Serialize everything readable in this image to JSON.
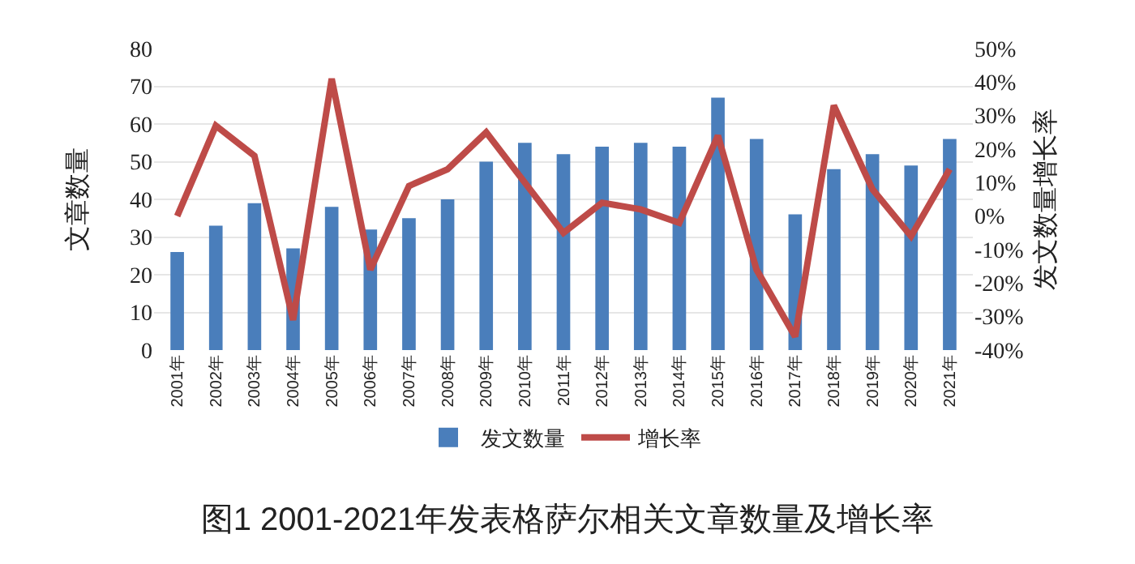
{
  "chart_data": {
    "type": "bar",
    "title": "图1 2001-2021年发表格萨尔相关文章数量及增长率",
    "ylabel": "文章数量",
    "y2label": "发文数量增长率",
    "categories": [
      "2001年",
      "2002年",
      "2003年",
      "2004年",
      "2005年",
      "2006年",
      "2007年",
      "2008年",
      "2009年",
      "2010年",
      "2011年",
      "2012年",
      "2013年",
      "2014年",
      "2015年",
      "2016年",
      "2017年",
      "2018年",
      "2019年",
      "2020年",
      "2021年"
    ],
    "series": [
      {
        "name": "发文数量",
        "color": "#4a7ebb",
        "values": [
          26,
          33,
          39,
          27,
          38,
          32,
          35,
          40,
          50,
          55,
          52,
          54,
          55,
          54,
          67,
          56,
          36,
          48,
          52,
          49,
          56
        ]
      },
      {
        "name": "增长率",
        "type": "line",
        "axis": "y2",
        "color": "#be4b48",
        "values": [
          0,
          27,
          18,
          -31,
          41,
          -16,
          9,
          14,
          25,
          10,
          -5,
          4,
          2,
          -2,
          24,
          -16,
          -36,
          33,
          8,
          -6,
          14
        ]
      }
    ],
    "ylim": [
      0,
      80
    ],
    "yticks": [
      0,
      10,
      20,
      30,
      40,
      50,
      60,
      70,
      80
    ],
    "y2lim": [
      -40,
      50
    ],
    "y2ticks": [
      {
        "value": -40,
        "label": "-40%"
      },
      {
        "value": -30,
        "label": "-30%"
      },
      {
        "value": -20,
        "label": "-20%"
      },
      {
        "value": -10,
        "label": "-10%"
      },
      {
        "value": 0,
        "label": "0%"
      },
      {
        "value": 10,
        "label": "10%"
      },
      {
        "value": 20,
        "label": "20%"
      },
      {
        "value": 30,
        "label": "30%"
      },
      {
        "value": 40,
        "label": "40%"
      },
      {
        "value": 50,
        "label": "50%"
      }
    ],
    "grid": "y",
    "legend": "bottom",
    "marker": "none",
    "line_style": "solid"
  }
}
